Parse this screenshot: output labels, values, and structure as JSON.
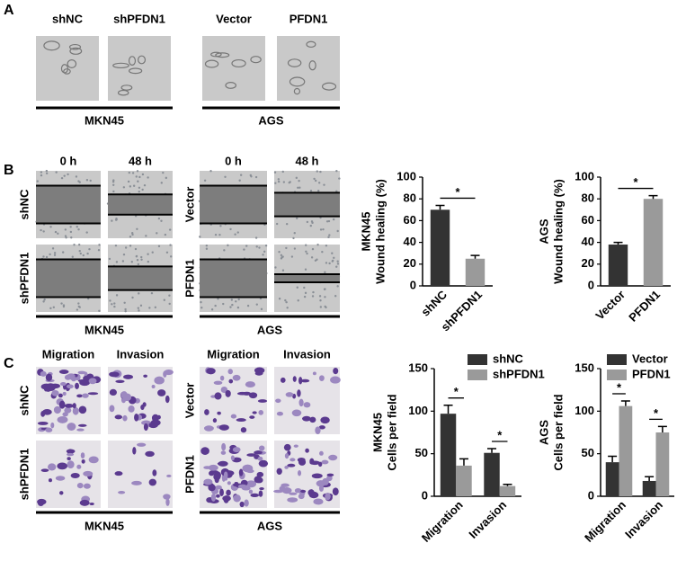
{
  "figure": {
    "A": {
      "label": "A",
      "columns": [
        "shNC",
        "shPFDN1",
        "Vector",
        "PFDN1"
      ],
      "groups": [
        "MKN45",
        "AGS"
      ]
    },
    "B": {
      "label": "B",
      "columns": [
        "0 h",
        "48 h",
        "0 h",
        "48 h"
      ],
      "rows": [
        "shNC",
        "shPFDN1",
        "Vector",
        "PFDN1"
      ],
      "groups": [
        "MKN45",
        "AGS"
      ]
    },
    "C": {
      "label": "C",
      "columns": [
        "Migration",
        "Invasion",
        "Migration",
        "Invasion"
      ],
      "rows": [
        "shNC",
        "shPFDN1",
        "Vector",
        "PFDN1"
      ],
      "groups": [
        "MKN45",
        "AGS"
      ]
    }
  },
  "chart_data": [
    {
      "type": "bar",
      "ylabel_lines": [
        "MKN45",
        "Wound healing (%)"
      ],
      "categories": [
        "shNC",
        "shPFDN1"
      ],
      "values": [
        70,
        25
      ],
      "errors": [
        4,
        3
      ],
      "colors": [
        "#333333",
        "#9a9a9a"
      ],
      "ylim": [
        0,
        100
      ],
      "yticks": [
        0,
        20,
        40,
        60,
        80,
        100
      ],
      "significance": [
        "*"
      ]
    },
    {
      "type": "bar",
      "ylabel_lines": [
        "AGS",
        "Wound healing (%)"
      ],
      "categories": [
        "Vector",
        "PFDN1"
      ],
      "values": [
        38,
        80
      ],
      "errors": [
        2,
        3
      ],
      "colors": [
        "#333333",
        "#9a9a9a"
      ],
      "ylim": [
        0,
        100
      ],
      "yticks": [
        0,
        20,
        40,
        60,
        80,
        100
      ],
      "significance": [
        "*"
      ]
    },
    {
      "type": "grouped_bar",
      "ylabel_lines": [
        "MKN45",
        "Cells per field"
      ],
      "categories": [
        "Migration",
        "Invasion"
      ],
      "series": [
        {
          "name": "shNC",
          "color": "#333333",
          "values": [
            97,
            51
          ],
          "errors": [
            10,
            5
          ]
        },
        {
          "name": "shPFDN1",
          "color": "#9a9a9a",
          "values": [
            36,
            12
          ],
          "errors": [
            8,
            2
          ]
        }
      ],
      "ylim": [
        0,
        150
      ],
      "yticks": [
        0,
        50,
        100,
        150
      ],
      "significance": [
        "*",
        "*"
      ]
    },
    {
      "type": "grouped_bar",
      "ylabel_lines": [
        "AGS",
        "Cells per field"
      ],
      "categories": [
        "Migration",
        "Invasion"
      ],
      "series": [
        {
          "name": "Vector",
          "color": "#333333",
          "values": [
            40,
            18
          ],
          "errors": [
            7,
            5
          ]
        },
        {
          "name": "PFDN1",
          "color": "#9a9a9a",
          "values": [
            106,
            75
          ],
          "errors": [
            6,
            7
          ]
        }
      ],
      "ylim": [
        0,
        150
      ],
      "yticks": [
        0,
        50,
        100,
        150
      ],
      "significance": [
        "*",
        "*"
      ]
    }
  ]
}
